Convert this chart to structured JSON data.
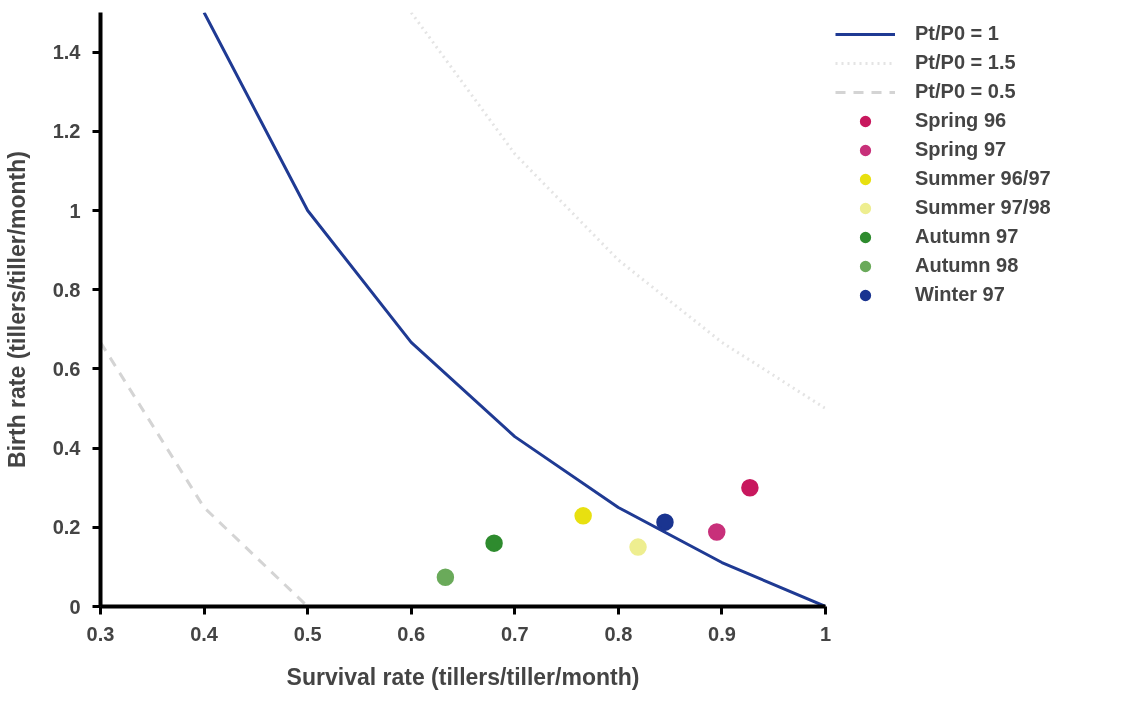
{
  "chart_data": {
    "type": "scatter",
    "xlabel": "Survival rate (tillers/tiller/month)",
    "ylabel": "Birth rate (tillers/tiller/month)",
    "xlim": [
      0.3,
      1
    ],
    "xticks": [
      0.3,
      0.4,
      0.5,
      0.6,
      0.7,
      0.8,
      0.9,
      1
    ],
    "ylim": [
      0,
      1.5
    ],
    "yticks": [
      0,
      0.2,
      0.4,
      0.6,
      0.8,
      1,
      1.2,
      1.4
    ],
    "grid": false,
    "legend": "right",
    "marker": "circle",
    "series": [
      {
        "name": "Pt/P0 = 1",
        "type": "line",
        "marker": "none",
        "line_style": "solid",
        "color": "#1f3a93",
        "x": [
          0.4,
          0.5,
          0.6,
          0.7,
          0.8,
          0.9,
          1
        ],
        "values": [
          1.5,
          1,
          0.667,
          0.429,
          0.25,
          0.111,
          0
        ]
      },
      {
        "name": "Pt/P0 = 1.5",
        "type": "line",
        "marker": "none",
        "line_style": "dotted",
        "color": "#e4e4e4",
        "x": [
          0.6,
          0.7,
          0.8,
          0.9,
          1
        ],
        "values": [
          1.5,
          1.143,
          0.875,
          0.667,
          0.5
        ]
      },
      {
        "name": "Pt/P0 = 0.5",
        "type": "line",
        "marker": "none",
        "line_style": "dashed",
        "color": "#d4d4d4",
        "x": [
          0.3,
          0.4,
          0.5
        ],
        "values": [
          0.667,
          0.25,
          0
        ]
      },
      {
        "name": "Spring 96",
        "color": "#c8185e",
        "x": [
          0.927
        ],
        "values": [
          0.3
        ]
      },
      {
        "name": "Spring 97",
        "color": "#c8307a",
        "x": [
          0.895
        ],
        "values": [
          0.188
        ]
      },
      {
        "name": "Summer 96/97",
        "color": "#e8e010",
        "x": [
          0.766
        ],
        "values": [
          0.229
        ]
      },
      {
        "name": "Summer 97/98",
        "color": "#eeee90",
        "x": [
          0.819
        ],
        "values": [
          0.15
        ]
      },
      {
        "name": "Autumn 97",
        "color": "#2e8b2e",
        "x": [
          0.68
        ],
        "values": [
          0.16
        ]
      },
      {
        "name": "Autumn 98",
        "color": "#6aaa5a",
        "x": [
          0.633
        ],
        "values": [
          0.074
        ]
      },
      {
        "name": "Winter 97",
        "color": "#1a3490",
        "x": [
          0.845
        ],
        "values": [
          0.213
        ]
      }
    ]
  }
}
